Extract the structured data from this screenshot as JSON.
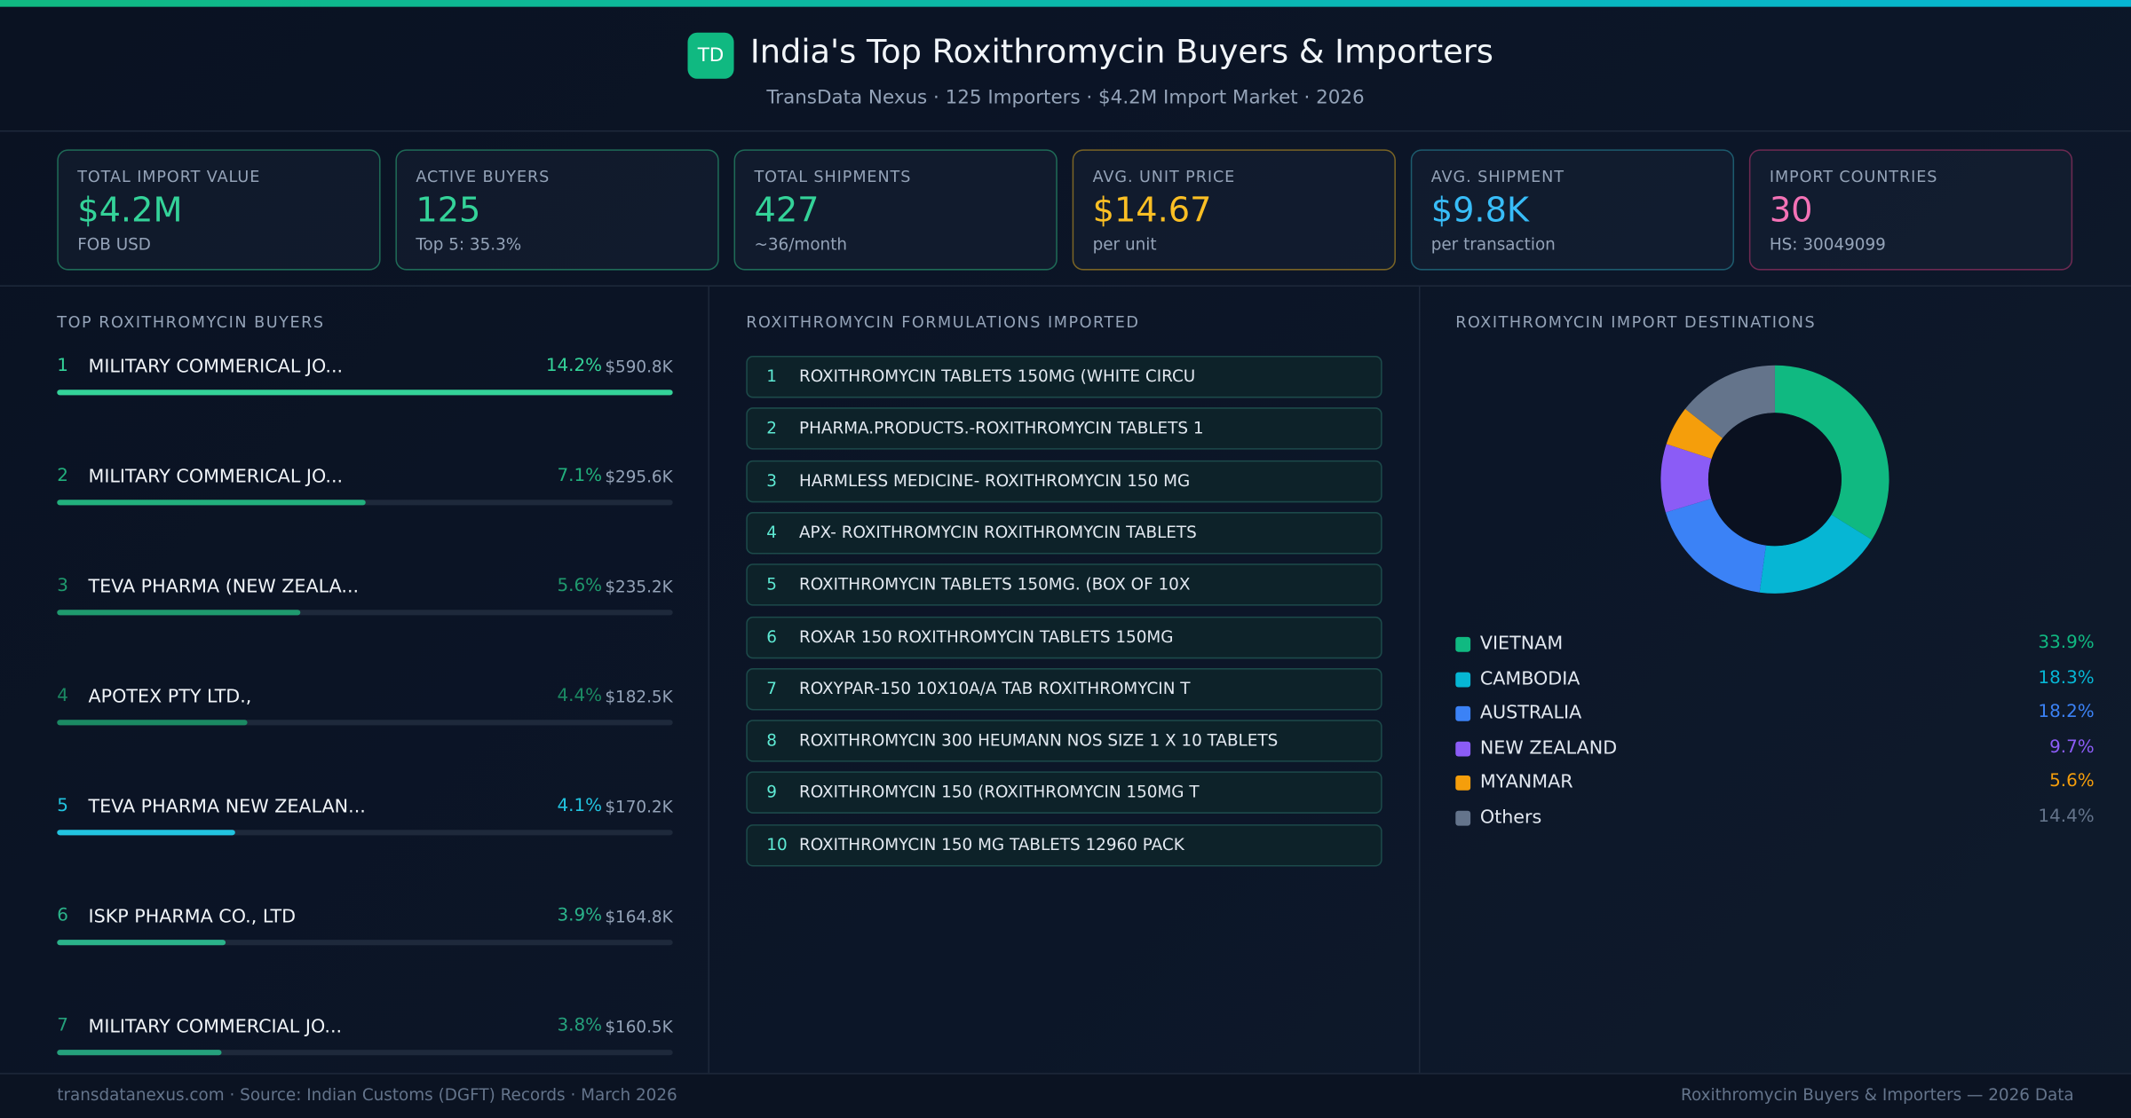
{
  "header": {
    "logo": "TD",
    "title": "India's Top Roxithromycin Buyers & Importers",
    "subtitle": "TransData Nexus · 125 Importers · $4.2M Import Market · 2026"
  },
  "kpis": [
    {
      "label": "TOTAL IMPORT VALUE",
      "value": "$4.2M",
      "sub": "FOB USD",
      "color": "#34d399",
      "border": "#1f6b57"
    },
    {
      "label": "ACTIVE BUYERS",
      "value": "125",
      "sub": "Top 5: 35.3%",
      "color": "#34d399",
      "border": "#1f6b57"
    },
    {
      "label": "TOTAL SHIPMENTS",
      "value": "427",
      "sub": "~36/month",
      "color": "#34d399",
      "border": "#1f6b57"
    },
    {
      "label": "AVG. UNIT PRICE",
      "value": "$14.67",
      "sub": "per unit",
      "color": "#fbbf24",
      "border": "#7a6425"
    },
    {
      "label": "AVG. SHIPMENT",
      "value": "$9.8K",
      "sub": "per transaction",
      "color": "#38bdf8",
      "border": "#1d5b6e"
    },
    {
      "label": "IMPORT COUNTRIES",
      "value": "30",
      "sub": "HS: 30049099",
      "color": "#f472b6",
      "border": "#6e2a52"
    }
  ],
  "buyers": {
    "heading": "TOP ROXITHROMYCIN BUYERS",
    "rows": [
      {
        "rank": "1",
        "name": "MILITARY COMMERICAL JO...",
        "share": 14.2,
        "share_label": "14.2%",
        "value": 590800,
        "value_label": "$590.8K",
        "color": "#34d399"
      },
      {
        "rank": "2",
        "name": "MILITARY COMMERICAL JO...",
        "share": 7.1,
        "share_label": "7.1%",
        "value": 295600,
        "value_label": "$295.6K",
        "color": "#22b07d"
      },
      {
        "rank": "3",
        "name": "TEVA PHARMA (NEW ZEALA...",
        "share": 5.6,
        "share_label": "5.6%",
        "value": 235200,
        "value_label": "$235.2K",
        "color": "#1f9a6e"
      },
      {
        "rank": "4",
        "name": "APOTEX PTY LTD.,",
        "share": 4.4,
        "share_label": "4.4%",
        "value": 182500,
        "value_label": "$182.5K",
        "color": "#1b8a63"
      },
      {
        "rank": "5",
        "name": "TEVA PHARMA NEW ZEALAN...",
        "share": 4.1,
        "share_label": "4.1%",
        "value": 170200,
        "value_label": "$170.2K",
        "color": "#22c4e0"
      },
      {
        "rank": "6",
        "name": "ISKP PHARMA CO., LTD",
        "share": 3.9,
        "share_label": "3.9%",
        "value": 164800,
        "value_label": "$164.8K",
        "color": "#2bb38a"
      },
      {
        "rank": "7",
        "name": "MILITARY COMMERCIAL JO...",
        "share": 3.8,
        "share_label": "3.8%",
        "value": 160500,
        "value_label": "$160.5K",
        "color": "#25a17c"
      }
    ]
  },
  "formulations": {
    "heading": "ROXITHROMYCIN FORMULATIONS IMPORTED",
    "items": [
      {
        "rank": "1",
        "name": "ROXITHROMYCIN TABLETS 150MG (WHITE CIRCU"
      },
      {
        "rank": "2",
        "name": "PHARMA.PRODUCTS.-ROXITHROMYCIN TABLETS 1"
      },
      {
        "rank": "3",
        "name": "HARMLESS MEDICINE- ROXITHROMYCIN 150 MG"
      },
      {
        "rank": "4",
        "name": "APX- ROXITHROMYCIN ROXITHROMYCIN TABLETS"
      },
      {
        "rank": "5",
        "name": "ROXITHROMYCIN TABLETS 150MG. (BOX OF 10X"
      },
      {
        "rank": "6",
        "name": "ROXAR 150 ROXITHROMYCIN TABLETS 150MG"
      },
      {
        "rank": "7",
        "name": "ROXYPAR-150 10X10A/A TAB ROXITHROMYCIN T"
      },
      {
        "rank": "8",
        "name": "ROXITHROMYCIN 300 HEUMANN NOS SIZE 1 X 10 TABLETS"
      },
      {
        "rank": "9",
        "name": "ROXITHROMYCIN 150 (ROXITHROMYCIN 150MG T"
      },
      {
        "rank": "10",
        "name": "ROXITHROMYCIN 150 MG TABLETS 12960 PACK"
      }
    ]
  },
  "destinations": {
    "heading": "ROXITHROMYCIN IMPORT DESTINATIONS",
    "type": "donut",
    "slices": [
      {
        "name": "VIETNAM",
        "value": 33.9,
        "label": "33.9%",
        "color": "#10b981"
      },
      {
        "name": "CAMBODIA",
        "value": 18.3,
        "label": "18.3%",
        "color": "#06b6d4"
      },
      {
        "name": "AUSTRALIA",
        "value": 18.2,
        "label": "18.2%",
        "color": "#3b82f6"
      },
      {
        "name": "NEW ZEALAND",
        "value": 9.7,
        "label": "9.7%",
        "color": "#8b5cf6"
      },
      {
        "name": "MYANMAR",
        "value": 5.6,
        "label": "5.6%",
        "color": "#f59e0b"
      },
      {
        "name": "Others",
        "value": 14.4,
        "label": "14.4%",
        "color": "#64748b"
      }
    ]
  },
  "footer": {
    "left": "transdatanexus.com · Source: Indian Customs (DGFT) Records · March 2026",
    "right": "Roxithromycin Buyers & Importers — 2026 Data"
  }
}
